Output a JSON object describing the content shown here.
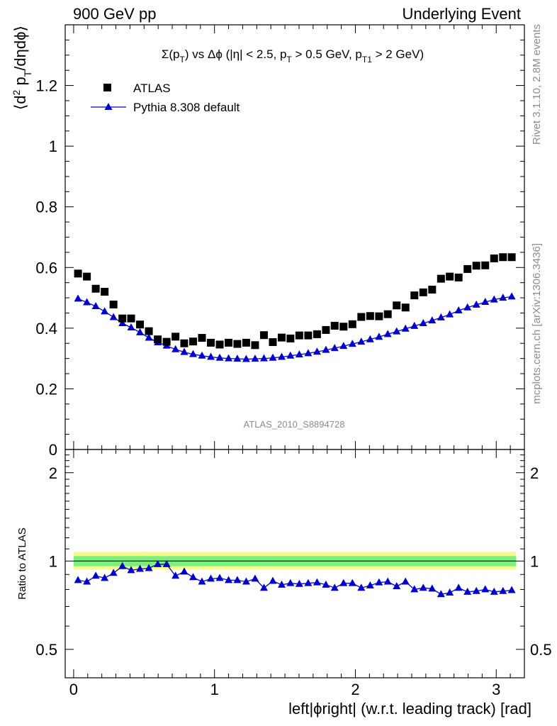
{
  "header": {
    "left": "900 GeV pp",
    "right": "Underlying Event"
  },
  "side_labels": {
    "rivet": "Rivet 3.1.10,  2.8M events",
    "mcplots": "mcplots.cern.ch [arXiv:1306.3436]"
  },
  "chart_data": [
    {
      "type": "scatter",
      "panel": "main",
      "title": "Σ(p_T) vs Δφ (|η| < 2.5, p_T > 0.5 GeV, p_T1 > 2 GeV)",
      "ylabel": "⟨d² p_T/dηdφ⟩",
      "xlim": [
        -0.06,
        3.2
      ],
      "ylim": [
        0,
        1.4
      ],
      "yticks": [
        0,
        0.2,
        0.4,
        0.6,
        0.8,
        1,
        1.2
      ],
      "legend_position": "top-left",
      "watermark": "ATLAS_2010_S8894728",
      "series": [
        {
          "name": "ATLAS",
          "marker": "square",
          "color": "#000000",
          "x": [
            0.031,
            0.094,
            0.157,
            0.22,
            0.283,
            0.346,
            0.408,
            0.471,
            0.534,
            0.597,
            0.66,
            0.723,
            0.785,
            0.848,
            0.911,
            0.974,
            1.037,
            1.1,
            1.162,
            1.225,
            1.288,
            1.351,
            1.414,
            1.477,
            1.539,
            1.602,
            1.665,
            1.728,
            1.791,
            1.853,
            1.916,
            1.979,
            2.042,
            2.105,
            2.168,
            2.23,
            2.293,
            2.356,
            2.419,
            2.482,
            2.545,
            2.608,
            2.67,
            2.733,
            2.796,
            2.859,
            2.922,
            2.985,
            3.048,
            3.11
          ],
          "y": [
            0.58,
            0.57,
            0.53,
            0.52,
            0.478,
            0.432,
            0.432,
            0.412,
            0.39,
            0.363,
            0.355,
            0.372,
            0.35,
            0.356,
            0.368,
            0.352,
            0.346,
            0.352,
            0.348,
            0.352,
            0.344,
            0.377,
            0.354,
            0.369,
            0.366,
            0.376,
            0.376,
            0.38,
            0.394,
            0.408,
            0.405,
            0.413,
            0.437,
            0.44,
            0.439,
            0.446,
            0.475,
            0.468,
            0.508,
            0.518,
            0.527,
            0.563,
            0.57,
            0.567,
            0.595,
            0.606,
            0.607,
            0.63,
            0.634,
            0.634
          ]
        },
        {
          "name": "Pythia 8.308 default",
          "marker": "triangle",
          "color": "#0000cc",
          "x": [
            0.031,
            0.094,
            0.157,
            0.22,
            0.283,
            0.346,
            0.408,
            0.471,
            0.534,
            0.597,
            0.66,
            0.723,
            0.785,
            0.848,
            0.911,
            0.974,
            1.037,
            1.1,
            1.162,
            1.225,
            1.288,
            1.351,
            1.414,
            1.477,
            1.539,
            1.602,
            1.665,
            1.728,
            1.791,
            1.853,
            1.916,
            1.979,
            2.042,
            2.105,
            2.168,
            2.23,
            2.293,
            2.356,
            2.419,
            2.482,
            2.545,
            2.608,
            2.67,
            2.733,
            2.796,
            2.859,
            2.922,
            2.985,
            3.048,
            3.11
          ],
          "y": [
            0.497,
            0.485,
            0.472,
            0.455,
            0.436,
            0.416,
            0.402,
            0.386,
            0.368,
            0.353,
            0.342,
            0.33,
            0.321,
            0.314,
            0.309,
            0.305,
            0.302,
            0.3,
            0.299,
            0.298,
            0.299,
            0.3,
            0.302,
            0.305,
            0.309,
            0.313,
            0.317,
            0.322,
            0.328,
            0.334,
            0.341,
            0.348,
            0.355,
            0.363,
            0.371,
            0.38,
            0.389,
            0.398,
            0.407,
            0.416,
            0.425,
            0.435,
            0.445,
            0.458,
            0.468,
            0.477,
            0.486,
            0.494,
            0.5,
            0.504
          ]
        }
      ]
    },
    {
      "type": "line",
      "panel": "ratio",
      "ylabel": "Ratio to ATLAS",
      "xlabel": "left|ϕright| (w.r.t. leading track) [rad]",
      "xlim": [
        -0.06,
        3.2
      ],
      "ylim": [
        0.4,
        2.4
      ],
      "log_y": true,
      "yticks": [
        0.5,
        1,
        2
      ],
      "xticks": [
        0,
        1,
        2,
        3
      ],
      "bands": {
        "stat": {
          "low": 0.96,
          "high": 1.04,
          "color": "#7cf07c"
        },
        "total": {
          "low": 0.935,
          "high": 1.075,
          "color": "#fafa8c"
        }
      },
      "series": [
        {
          "name": "Pythia 8.308 default",
          "color": "#0000cc",
          "x": [
            0.031,
            0.094,
            0.157,
            0.22,
            0.283,
            0.346,
            0.408,
            0.471,
            0.534,
            0.597,
            0.66,
            0.723,
            0.785,
            0.848,
            0.911,
            0.974,
            1.037,
            1.1,
            1.162,
            1.225,
            1.288,
            1.351,
            1.414,
            1.477,
            1.539,
            1.602,
            1.665,
            1.728,
            1.791,
            1.853,
            1.916,
            1.979,
            2.042,
            2.105,
            2.168,
            2.23,
            2.293,
            2.356,
            2.419,
            2.482,
            2.545,
            2.608,
            2.67,
            2.733,
            2.796,
            2.859,
            2.922,
            2.985,
            3.048,
            3.11
          ],
          "y": [
            0.86,
            0.85,
            0.89,
            0.875,
            0.91,
            0.96,
            0.93,
            0.94,
            0.945,
            0.975,
            0.975,
            0.89,
            0.92,
            0.88,
            0.85,
            0.87,
            0.875,
            0.86,
            0.86,
            0.85,
            0.87,
            0.81,
            0.855,
            0.83,
            0.84,
            0.835,
            0.84,
            0.845,
            0.83,
            0.81,
            0.84,
            0.84,
            0.81,
            0.825,
            0.845,
            0.85,
            0.82,
            0.85,
            0.8,
            0.81,
            0.805,
            0.77,
            0.78,
            0.81,
            0.785,
            0.79,
            0.8,
            0.785,
            0.79,
            0.795
          ]
        }
      ]
    }
  ]
}
